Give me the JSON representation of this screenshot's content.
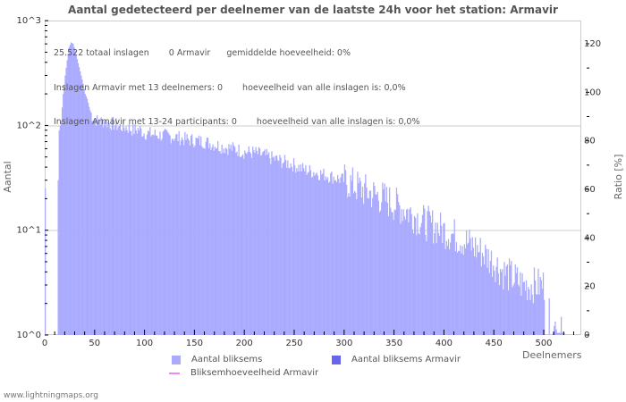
{
  "title": "Aantal gedetecteerd per deelnemer van de laatste 24h voor het station: Armavir",
  "info": {
    "line1_a": "25.522 totaal inslagen",
    "line1_b": "0 Armavir",
    "line1_c": "gemiddelde hoeveelheid: 0%",
    "line2_a": "Inslagen Armavir met 13 deelnemers: 0",
    "line2_b": "hoeveelheid van alle inslagen is: 0,0%",
    "line3_a": "Inslagen Armavir met 13-24 participants: 0",
    "line3_b": "hoeveelheid van alle inslagen is: 0,0%"
  },
  "legend": {
    "item1": "Aantal bliksems",
    "item2": "Aantal bliksems Armavir",
    "item3": "Bliksemhoeveelheid Armavir"
  },
  "footer": "www.lightningmaps.org",
  "colors": {
    "bars": "#aaaaff",
    "bars_station": "#6666ee",
    "ratio_line": "#ee88ee",
    "grid": "#cccccc"
  },
  "chart_data": {
    "type": "bar",
    "title": "Aantal gedetecteerd per deelnemer van de laatste 24h voor het station: Armavir",
    "xlabel": "Deelnemers",
    "ylabel": "Aantal",
    "y2label": "Ratio [%]",
    "yscale": "log",
    "ylim": [
      1,
      1000
    ],
    "y2lim": [
      0,
      129
    ],
    "xlim": [
      0,
      538
    ],
    "x_ticks": [
      "0",
      "50",
      "100",
      "150",
      "200",
      "250",
      "300",
      "350",
      "400",
      "450",
      "500"
    ],
    "y_ticks": [
      "10^0",
      "10^1",
      "10^2",
      "10^3"
    ],
    "y2_ticks": [
      "0",
      "20",
      "40",
      "60",
      "80",
      "100",
      "120"
    ],
    "legend": [
      "Aantal bliksems",
      "Aantal bliksems Armavir",
      "Bliksemhoeveelheid Armavir"
    ],
    "series": [
      {
        "name": "Aantal bliksems",
        "x_start": 1,
        "bin_width": 1,
        "keypoints": [
          [
            1,
            25
          ],
          [
            2,
            0
          ],
          [
            13,
            0
          ],
          [
            14,
            30
          ],
          [
            15,
            90
          ],
          [
            17,
            110
          ],
          [
            19,
            200
          ],
          [
            21,
            300
          ],
          [
            23,
            420
          ],
          [
            25,
            560
          ],
          [
            27,
            620
          ],
          [
            29,
            600
          ],
          [
            31,
            520
          ],
          [
            33,
            430
          ],
          [
            35,
            360
          ],
          [
            37,
            300
          ],
          [
            39,
            250
          ],
          [
            41,
            200
          ],
          [
            43,
            180
          ],
          [
            45,
            150
          ],
          [
            47,
            130
          ],
          [
            50,
            115
          ],
          [
            55,
            108
          ],
          [
            60,
            110
          ],
          [
            65,
            105
          ],
          [
            70,
            103
          ],
          [
            75,
            98
          ],
          [
            80,
            97
          ],
          [
            85,
            94
          ],
          [
            90,
            90
          ],
          [
            95,
            92
          ],
          [
            100,
            85
          ],
          [
            110,
            82
          ],
          [
            120,
            80
          ],
          [
            130,
            78
          ],
          [
            140,
            74
          ],
          [
            150,
            72
          ],
          [
            160,
            70
          ],
          [
            170,
            66
          ],
          [
            180,
            62
          ],
          [
            190,
            60
          ],
          [
            200,
            56
          ],
          [
            210,
            55
          ],
          [
            220,
            52
          ],
          [
            230,
            48
          ],
          [
            240,
            45
          ],
          [
            250,
            42
          ],
          [
            260,
            38
          ],
          [
            270,
            36
          ],
          [
            280,
            34
          ],
          [
            290,
            32
          ],
          [
            300,
            30
          ],
          [
            310,
            27
          ],
          [
            320,
            24
          ],
          [
            330,
            22
          ],
          [
            340,
            20
          ],
          [
            350,
            18
          ],
          [
            360,
            16
          ],
          [
            370,
            14
          ],
          [
            380,
            12
          ],
          [
            390,
            11
          ],
          [
            400,
            10
          ],
          [
            410,
            9
          ],
          [
            420,
            8
          ],
          [
            430,
            7
          ],
          [
            440,
            6
          ],
          [
            450,
            5
          ],
          [
            460,
            4
          ],
          [
            470,
            3.5
          ],
          [
            480,
            3
          ],
          [
            490,
            3
          ],
          [
            500,
            3
          ],
          [
            502,
            0
          ],
          [
            506,
            3
          ],
          [
            507,
            0
          ],
          [
            510,
            1
          ],
          [
            520,
            1
          ],
          [
            522,
            0
          ],
          [
            535,
            1
          ]
        ]
      },
      {
        "name": "Aantal bliksems Armavir",
        "values": []
      },
      {
        "name": "Bliksemhoeveelheid Armavir",
        "values": []
      }
    ]
  }
}
